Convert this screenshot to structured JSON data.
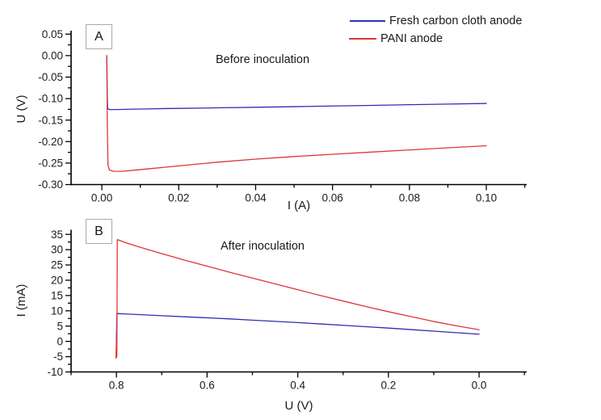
{
  "figure": {
    "background": "#ffffff",
    "axis_color": "#000000",
    "legend": {
      "position": "top-right",
      "entries": [
        {
          "label": "Fresh carbon cloth anode",
          "color": "#2e2eb8"
        },
        {
          "label": "PANI anode",
          "color": "#e03535"
        }
      ]
    }
  },
  "chart_data": [
    {
      "type": "line",
      "panel_label": "A",
      "annotation": "Before inoculation",
      "xlabel": "I (A)",
      "ylabel": "U (V)",
      "xlim": [
        -0.008,
        0.1105
      ],
      "ylim": [
        -0.3,
        0.058
      ],
      "grid": false,
      "x_ticks": {
        "values": [
          0.0,
          0.02,
          0.04,
          0.06,
          0.08,
          0.1
        ],
        "labels": [
          "0.00",
          "0.02",
          "0.04",
          "0.06",
          "0.08",
          "0.10"
        ],
        "minor_step": 0.01
      },
      "y_ticks": {
        "values": [
          0.05,
          0.0,
          -0.05,
          -0.1,
          -0.15,
          -0.2,
          -0.25,
          -0.3
        ],
        "labels": [
          "0.05",
          "0.00",
          "-0.05",
          "-0.10",
          "-0.15",
          "-0.20",
          "-0.25",
          "-0.30"
        ],
        "minor_step": 0.025
      },
      "series": [
        {
          "name": "Fresh carbon cloth anode",
          "color": "#2e2eb8",
          "points": [
            [
              0.0013,
              0.0
            ],
            [
              0.0014,
              -0.09
            ],
            [
              0.0015,
              -0.123
            ],
            [
              0.002,
              -0.1255
            ],
            [
              0.004,
              -0.1255
            ],
            [
              0.008,
              -0.1245
            ],
            [
              0.012,
              -0.124
            ],
            [
              0.016,
              -0.1232
            ],
            [
              0.02,
              -0.1228
            ],
            [
              0.03,
              -0.1215
            ],
            [
              0.04,
              -0.1202
            ],
            [
              0.05,
              -0.1188
            ],
            [
              0.06,
              -0.1172
            ],
            [
              0.07,
              -0.1158
            ],
            [
              0.08,
              -0.1142
            ],
            [
              0.09,
              -0.1128
            ],
            [
              0.1,
              -0.1112
            ]
          ]
        },
        {
          "name": "PANI anode",
          "color": "#e03535",
          "points": [
            [
              0.0013,
              0.0
            ],
            [
              0.0014,
              -0.15
            ],
            [
              0.0016,
              -0.255
            ],
            [
              0.002,
              -0.2665
            ],
            [
              0.003,
              -0.269
            ],
            [
              0.005,
              -0.2692
            ],
            [
              0.008,
              -0.267
            ],
            [
              0.012,
              -0.2635
            ],
            [
              0.016,
              -0.26
            ],
            [
              0.02,
              -0.2565
            ],
            [
              0.03,
              -0.248
            ],
            [
              0.04,
              -0.2408
            ],
            [
              0.05,
              -0.2348
            ],
            [
              0.06,
              -0.2295
            ],
            [
              0.07,
              -0.2245
            ],
            [
              0.08,
              -0.2195
            ],
            [
              0.09,
              -0.2145
            ],
            [
              0.1,
              -0.2098
            ]
          ]
        }
      ]
    },
    {
      "type": "line",
      "panel_label": "B",
      "annotation": "After inoculation",
      "xlabel": "U (V)",
      "ylabel": "I (mA)",
      "xlim": [
        0.9,
        -0.105
      ],
      "ylim": [
        -10,
        36.5
      ],
      "x_axis_reversed": true,
      "grid": false,
      "x_ticks": {
        "values": [
          0.8,
          0.6,
          0.4,
          0.2,
          0.0
        ],
        "labels": [
          "0.8",
          "0.6",
          "0.4",
          "0.2",
          "0.0"
        ],
        "minor_step": 0.1
      },
      "y_ticks": {
        "values": [
          35,
          30,
          25,
          20,
          15,
          10,
          5,
          0,
          -5,
          -10
        ],
        "labels": [
          "35",
          "30",
          "25",
          "20",
          "15",
          "10",
          "5",
          "0",
          "-5",
          "-10"
        ],
        "minor_step": 2.5
      },
      "series": [
        {
          "name": "Fresh carbon cloth anode",
          "color": "#2e2eb8",
          "points": [
            [
              0.8,
              0.0
            ],
            [
              0.799,
              9.1
            ],
            [
              0.78,
              8.95
            ],
            [
              0.75,
              8.75
            ],
            [
              0.7,
              8.4
            ],
            [
              0.65,
              8.05
            ],
            [
              0.6,
              7.7
            ],
            [
              0.55,
              7.35
            ],
            [
              0.5,
              6.95
            ],
            [
              0.45,
              6.55
            ],
            [
              0.4,
              6.15
            ],
            [
              0.35,
              5.7
            ],
            [
              0.3,
              5.25
            ],
            [
              0.25,
              4.8
            ],
            [
              0.2,
              4.35
            ],
            [
              0.15,
              3.85
            ],
            [
              0.1,
              3.35
            ],
            [
              0.05,
              2.85
            ],
            [
              0.0,
              2.35
            ]
          ]
        },
        {
          "name": "PANI anode",
          "color": "#e03535",
          "points": [
            [
              0.8,
              0.5
            ],
            [
              0.801,
              -5.5
            ],
            [
              0.799,
              -4.8
            ],
            [
              0.798,
              33.3
            ],
            [
              0.78,
              32.3
            ],
            [
              0.75,
              30.9
            ],
            [
              0.7,
              28.7
            ],
            [
              0.65,
              26.6
            ],
            [
              0.6,
              24.6
            ],
            [
              0.55,
              22.6
            ],
            [
              0.5,
              20.7
            ],
            [
              0.45,
              18.8
            ],
            [
              0.4,
              16.9
            ],
            [
              0.35,
              15.0
            ],
            [
              0.3,
              13.2
            ],
            [
              0.25,
              11.4
            ],
            [
              0.2,
              9.7
            ],
            [
              0.15,
              8.1
            ],
            [
              0.1,
              6.5
            ],
            [
              0.05,
              5.1
            ],
            [
              0.0,
              3.8
            ]
          ]
        }
      ]
    }
  ]
}
